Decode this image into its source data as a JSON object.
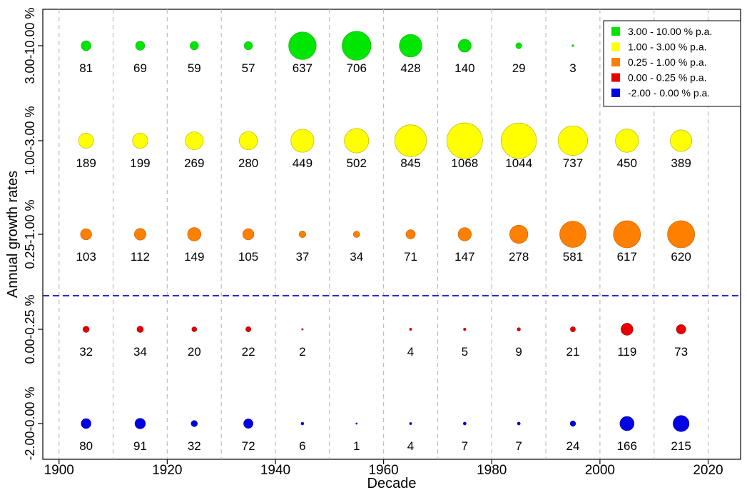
{
  "chart_data": {
    "type": "scatter",
    "xlabel": "Decade",
    "ylabel": "Annual growth rates",
    "x_ticks": [
      1900,
      1920,
      1940,
      1960,
      1980,
      2000,
      2020
    ],
    "xlim": [
      1897,
      2026
    ],
    "decades": [
      1905,
      1915,
      1925,
      1935,
      1945,
      1955,
      1965,
      1975,
      1985,
      1995,
      2005,
      2015
    ],
    "grid": "dashed vertical lines at decade boundaries",
    "legend_position": "top-right",
    "threshold_line": "dashed blue line between 0.25-1.00 % and 0.00-0.25 % rows",
    "series": [
      {
        "name": "3.00 - 10.00 % p.a.",
        "row_label": "3.00-10.00 %",
        "color": "#00e600",
        "values": [
          81,
          69,
          59,
          57,
          637,
          706,
          428,
          140,
          29,
          3,
          null,
          null
        ]
      },
      {
        "name": "1.00 - 3.00 % p.a.",
        "row_label": "1.00-3.00 %",
        "color": "#ffff00",
        "values": [
          189,
          199,
          269,
          280,
          449,
          502,
          845,
          1068,
          1044,
          737,
          450,
          389
        ]
      },
      {
        "name": "0.25 - 1.00 % p.a.",
        "row_label": "0.25-1.00 %",
        "color": "#ff8000",
        "values": [
          103,
          112,
          149,
          105,
          37,
          34,
          71,
          147,
          278,
          581,
          617,
          620
        ]
      },
      {
        "name": "0.00 - 0.25 % p.a.",
        "row_label": "0.00-0.25 %",
        "color": "#e60000",
        "values": [
          32,
          34,
          20,
          22,
          2,
          null,
          4,
          5,
          9,
          21,
          119,
          73
        ]
      },
      {
        "name": "-2.00 - 0.00 % p.a.",
        "row_label": "-2.00-0.00 %",
        "color": "#0000e6",
        "values": [
          80,
          91,
          32,
          72,
          6,
          1,
          4,
          7,
          7,
          24,
          166,
          215
        ]
      }
    ]
  }
}
